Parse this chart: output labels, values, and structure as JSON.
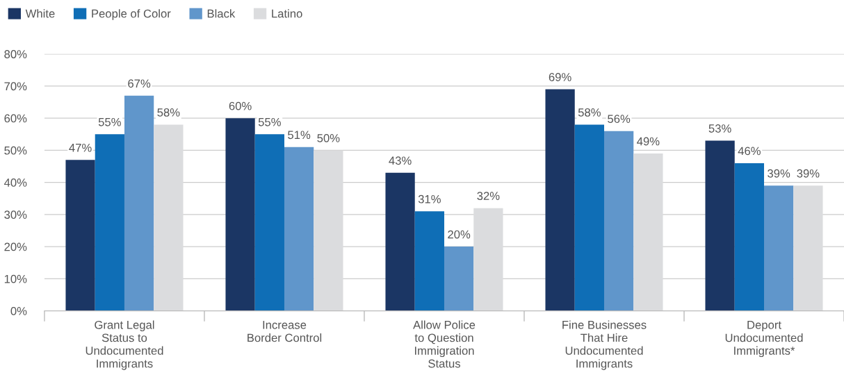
{
  "chart_data": {
    "type": "bar",
    "categories": [
      "Grant Legal\nStatus to\nUndocumented\nImmigrants",
      "Increase\nBorder Control",
      "Allow Police\nto Question\nImmigration\nStatus",
      "Fine Businesses\nThat Hire\nUndocumented\nImmigrants",
      "Deport\nUndocumented\nImmigrants*"
    ],
    "series": [
      {
        "name": "White",
        "color": "#1b3664",
        "values": [
          47,
          60,
          43,
          69,
          53
        ],
        "value_labels": [
          "47%",
          "60%",
          "43%",
          "69%",
          "53%"
        ]
      },
      {
        "name": "People of Color",
        "color": "#0f6eb6",
        "values": [
          55,
          55,
          31,
          58,
          46
        ],
        "value_labels": [
          "55%",
          "55%",
          "31%",
          "58%",
          "46%"
        ]
      },
      {
        "name": "Black",
        "color": "#6096cb",
        "values": [
          67,
          51,
          20,
          56,
          39
        ],
        "value_labels": [
          "67%",
          "51%",
          "20%",
          "56%",
          "39%"
        ]
      },
      {
        "name": "Latino",
        "color": "#dbdcde",
        "values": [
          58,
          50,
          32,
          49,
          39
        ],
        "value_labels": [
          "58%",
          "50%",
          "32%",
          "49%",
          "39%"
        ]
      }
    ],
    "ylim": [
      0,
      80
    ],
    "yticks": [
      {
        "value": 0,
        "label": "0%"
      },
      {
        "value": 10,
        "label": "10%"
      },
      {
        "value": 20,
        "label": "20%"
      },
      {
        "value": 30,
        "label": "30%"
      },
      {
        "value": 40,
        "label": "40%"
      },
      {
        "value": 50,
        "label": "50%"
      },
      {
        "value": 60,
        "label": "60%"
      },
      {
        "value": 70,
        "label": "70%"
      },
      {
        "value": 80,
        "label": "80%"
      }
    ],
    "grid": "y",
    "legend": "top left"
  }
}
